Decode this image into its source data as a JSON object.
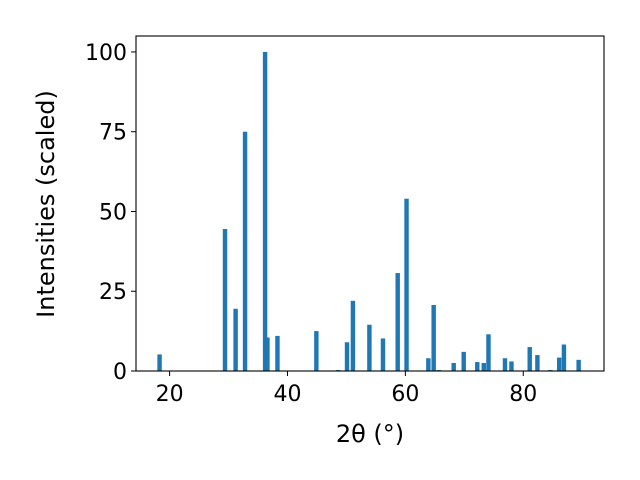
{
  "chart_data": {
    "type": "bar",
    "xlabel": "2θ (°)",
    "ylabel": "Intensities (scaled)",
    "xlim": [
      14.3,
      93.7
    ],
    "ylim": [
      0,
      105
    ],
    "xticks": [
      20,
      40,
      60,
      80
    ],
    "yticks": [
      0,
      25,
      50,
      75,
      100
    ],
    "bar_color": "#1f77b4",
    "bar_width": 0.75,
    "x": [
      18.3,
      29.4,
      31.2,
      32.8,
      36.2,
      36.6,
      38.3,
      44.9,
      48.6,
      50.1,
      51.1,
      53.9,
      56.2,
      58.7,
      60.2,
      63.9,
      64.8,
      65.7,
      68.2,
      69.9,
      72.2,
      73.3,
      74.1,
      76.9,
      78.0,
      81.1,
      82.4,
      84.6,
      86.1,
      86.9,
      89.4
    ],
    "values": [
      5.2,
      44.5,
      19.5,
      75.0,
      100.0,
      10.5,
      11.0,
      12.5,
      0.3,
      9.0,
      22.0,
      14.5,
      10.2,
      30.7,
      54.0,
      4.0,
      20.7,
      0.3,
      2.5,
      6.0,
      2.8,
      2.5,
      11.5,
      4.0,
      3.0,
      7.5,
      5.0,
      0.3,
      4.2,
      8.3,
      3.5
    ]
  }
}
